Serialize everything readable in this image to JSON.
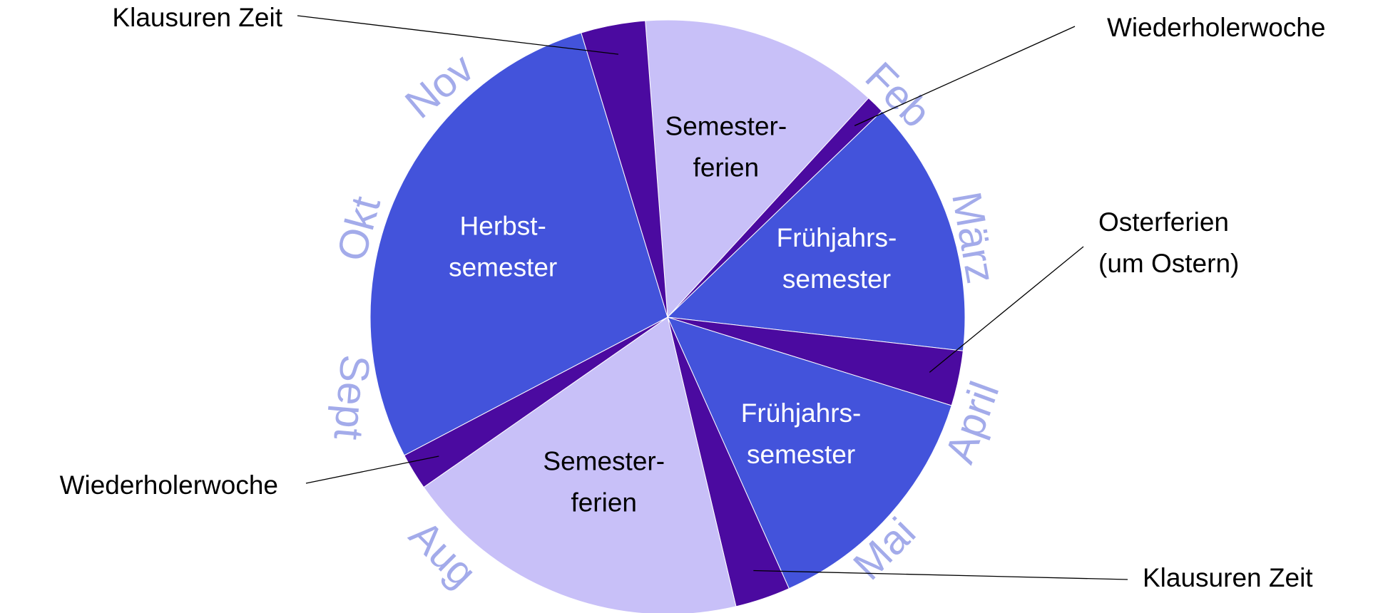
{
  "chart_data": {
    "type": "pie",
    "categories": [
      "Semester-\nferien",
      "Wiederholerwoche",
      "Frühjahrs-\nsemester",
      "Osterferien\n(um Ostern)",
      "Frühjahrs-\nsemester",
      "Klausuren Zeit",
      "Semester-\nferien",
      "Wiederholerwoche",
      "Herbst-\nsemester",
      "Klausuren Zeit"
    ],
    "values": [
      13,
      1,
      14,
      3,
      13.5,
      3,
      19,
      2,
      28,
      3.5
    ],
    "colors": [
      "#c8c0f8",
      "#4b0aa0",
      "#4353db",
      "#4b0aa0",
      "#4353db",
      "#4b0aa0",
      "#c8c0f8",
      "#4b0aa0",
      "#4353db",
      "#4b0aa0"
    ],
    "startangle": -4.3,
    "month_labels": [
      "Feb",
      "März",
      "April",
      "Mai",
      "Aug",
      "Sept",
      "Okt",
      "Nov"
    ]
  }
}
